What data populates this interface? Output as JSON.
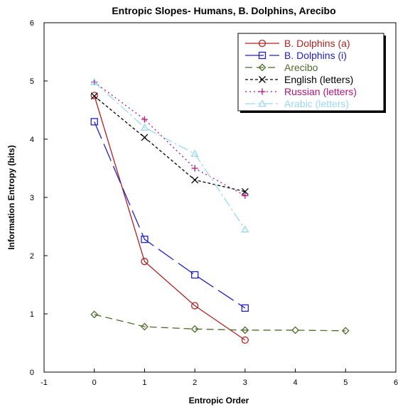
{
  "chart_data": {
    "type": "line",
    "title": "Entropic Slopes- Humans, B. Dolphins, Arecibo",
    "xlabel": "Entropic Order",
    "ylabel": "Information Entropy (bits)",
    "xlim": [
      -1,
      6
    ],
    "ylim": [
      0,
      6
    ],
    "xticks": [
      -1,
      0,
      1,
      2,
      3,
      4,
      5,
      6
    ],
    "yticks": [
      0,
      1,
      2,
      3,
      4,
      5,
      6
    ],
    "grid": false,
    "legend_position": "top-right",
    "series": [
      {
        "name": "B. Dolphins (a)",
        "color": "#b22222",
        "dash": "",
        "marker": "circle",
        "x": [
          0,
          1,
          2,
          3
        ],
        "y": [
          4.75,
          1.9,
          1.14,
          0.55
        ]
      },
      {
        "name": "B. Dolphins (i)",
        "color": "#2020c8",
        "dash": "26 8",
        "marker": "square",
        "x": [
          0,
          1,
          2,
          3
        ],
        "y": [
          4.3,
          2.28,
          1.67,
          1.1
        ]
      },
      {
        "name": "Arecibo",
        "color": "#4f6b2a",
        "dash": "10 6",
        "marker": "diamond",
        "x": [
          0,
          1,
          2,
          3,
          4,
          5
        ],
        "y": [
          0.99,
          0.78,
          0.74,
          0.72,
          0.72,
          0.71
        ]
      },
      {
        "name": "English (letters)",
        "color": "#000000",
        "dash": "4 3",
        "marker": "x",
        "x": [
          0,
          1,
          2,
          3
        ],
        "y": [
          4.74,
          4.03,
          3.3,
          3.1
        ]
      },
      {
        "name": "Russian (letters)",
        "color": "#b0147a",
        "dash": "2 4",
        "marker": "plus",
        "x": [
          0,
          1,
          2,
          3
        ],
        "y": [
          4.98,
          4.34,
          3.5,
          3.03
        ]
      },
      {
        "name": "Arabic (letters)",
        "color": "#9ad8f0",
        "dash": "14 4 3 4",
        "marker": "triangle",
        "x": [
          0,
          1,
          2,
          3
        ],
        "y": [
          4.98,
          4.2,
          3.75,
          2.45
        ]
      }
    ]
  }
}
